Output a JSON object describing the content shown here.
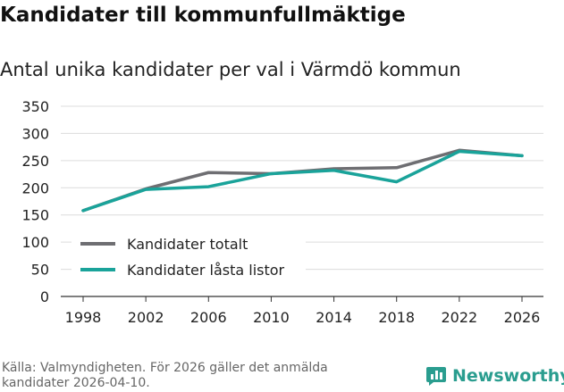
{
  "header": {
    "title": "Kandidater till kommunfullmäktige",
    "subtitle": "Antal unika kandidater per val i Värmdö kommun"
  },
  "chart_data": {
    "type": "line",
    "title": "Kandidater till kommunfullmäktige",
    "subtitle": "Antal unika kandidater per val i Värmdö kommun",
    "xlabel": "",
    "ylabel": "",
    "categories": [
      "1998",
      "2002",
      "2006",
      "2010",
      "2014",
      "2018",
      "2022",
      "2026"
    ],
    "ylim": [
      0,
      350
    ],
    "yticks": [
      0,
      50,
      100,
      150,
      200,
      250,
      300,
      350
    ],
    "grid": true,
    "legend_position": "bottom-left",
    "series": [
      {
        "name": "Kandidater totalt",
        "color": "#6e6e72",
        "values": [
          158,
          198,
          228,
          226,
          235,
          237,
          269,
          259
        ]
      },
      {
        "name": "Kandidater låsta listor",
        "color": "#1aa39a",
        "values": [
          158,
          197,
          202,
          226,
          232,
          211,
          267,
          259
        ]
      }
    ]
  },
  "footer": {
    "source_line1": "Källa: Valmyndigheten. För 2026 gäller det anmälda",
    "source_line2": "kandidater 2026-04-10.",
    "brand_name": "Newsworthy",
    "brand_color": "#2a9d8f",
    "brand_icon": "bar-chart-logo-icon"
  }
}
